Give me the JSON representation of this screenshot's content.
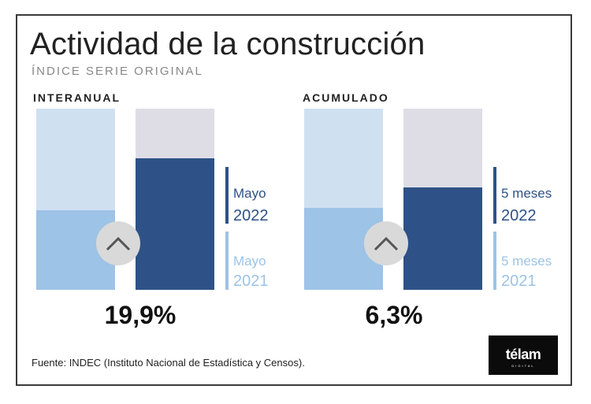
{
  "title": "Actividad de la construcción",
  "subtitle": "ÍNDICE SERIE ORIGINAL",
  "source": "Fuente: INDEC (Instituto Nacional de Estadística y Censos).",
  "logo": "télam",
  "logo_sub": "DIGITAL",
  "colors": {
    "light_blue": "#9dc3e6",
    "dark_blue": "#2e5287",
    "pale_blue": "#cfe0f1",
    "pale_gray": "#dedde6",
    "circle": "#d9d9d9",
    "legend_light_text": "#9dc3e6",
    "legend_dark_text": "#2e5287"
  },
  "chart_data": [
    {
      "type": "bar",
      "title": "INTERANUAL",
      "categories": [
        "Mayo 2021",
        "Mayo 2022"
      ],
      "values": [
        0.44,
        0.725
      ],
      "ylim": [
        0,
        1
      ],
      "change_label": "19,9%",
      "icon": "chevron-up-icon",
      "legend": [
        {
          "month": "Mayo",
          "year": "2022"
        },
        {
          "month": "Mayo",
          "year": "2021"
        }
      ]
    },
    {
      "type": "bar",
      "title": "ACUMULADO",
      "categories": [
        "5 meses 2021",
        "5 meses 2022"
      ],
      "values": [
        0.45,
        0.565
      ],
      "ylim": [
        0,
        1
      ],
      "change_label": "6,3%",
      "icon": "chevron-up-icon",
      "legend": [
        {
          "month": "5 meses",
          "year": "2022"
        },
        {
          "month": "5 meses",
          "year": "2021"
        }
      ]
    }
  ]
}
